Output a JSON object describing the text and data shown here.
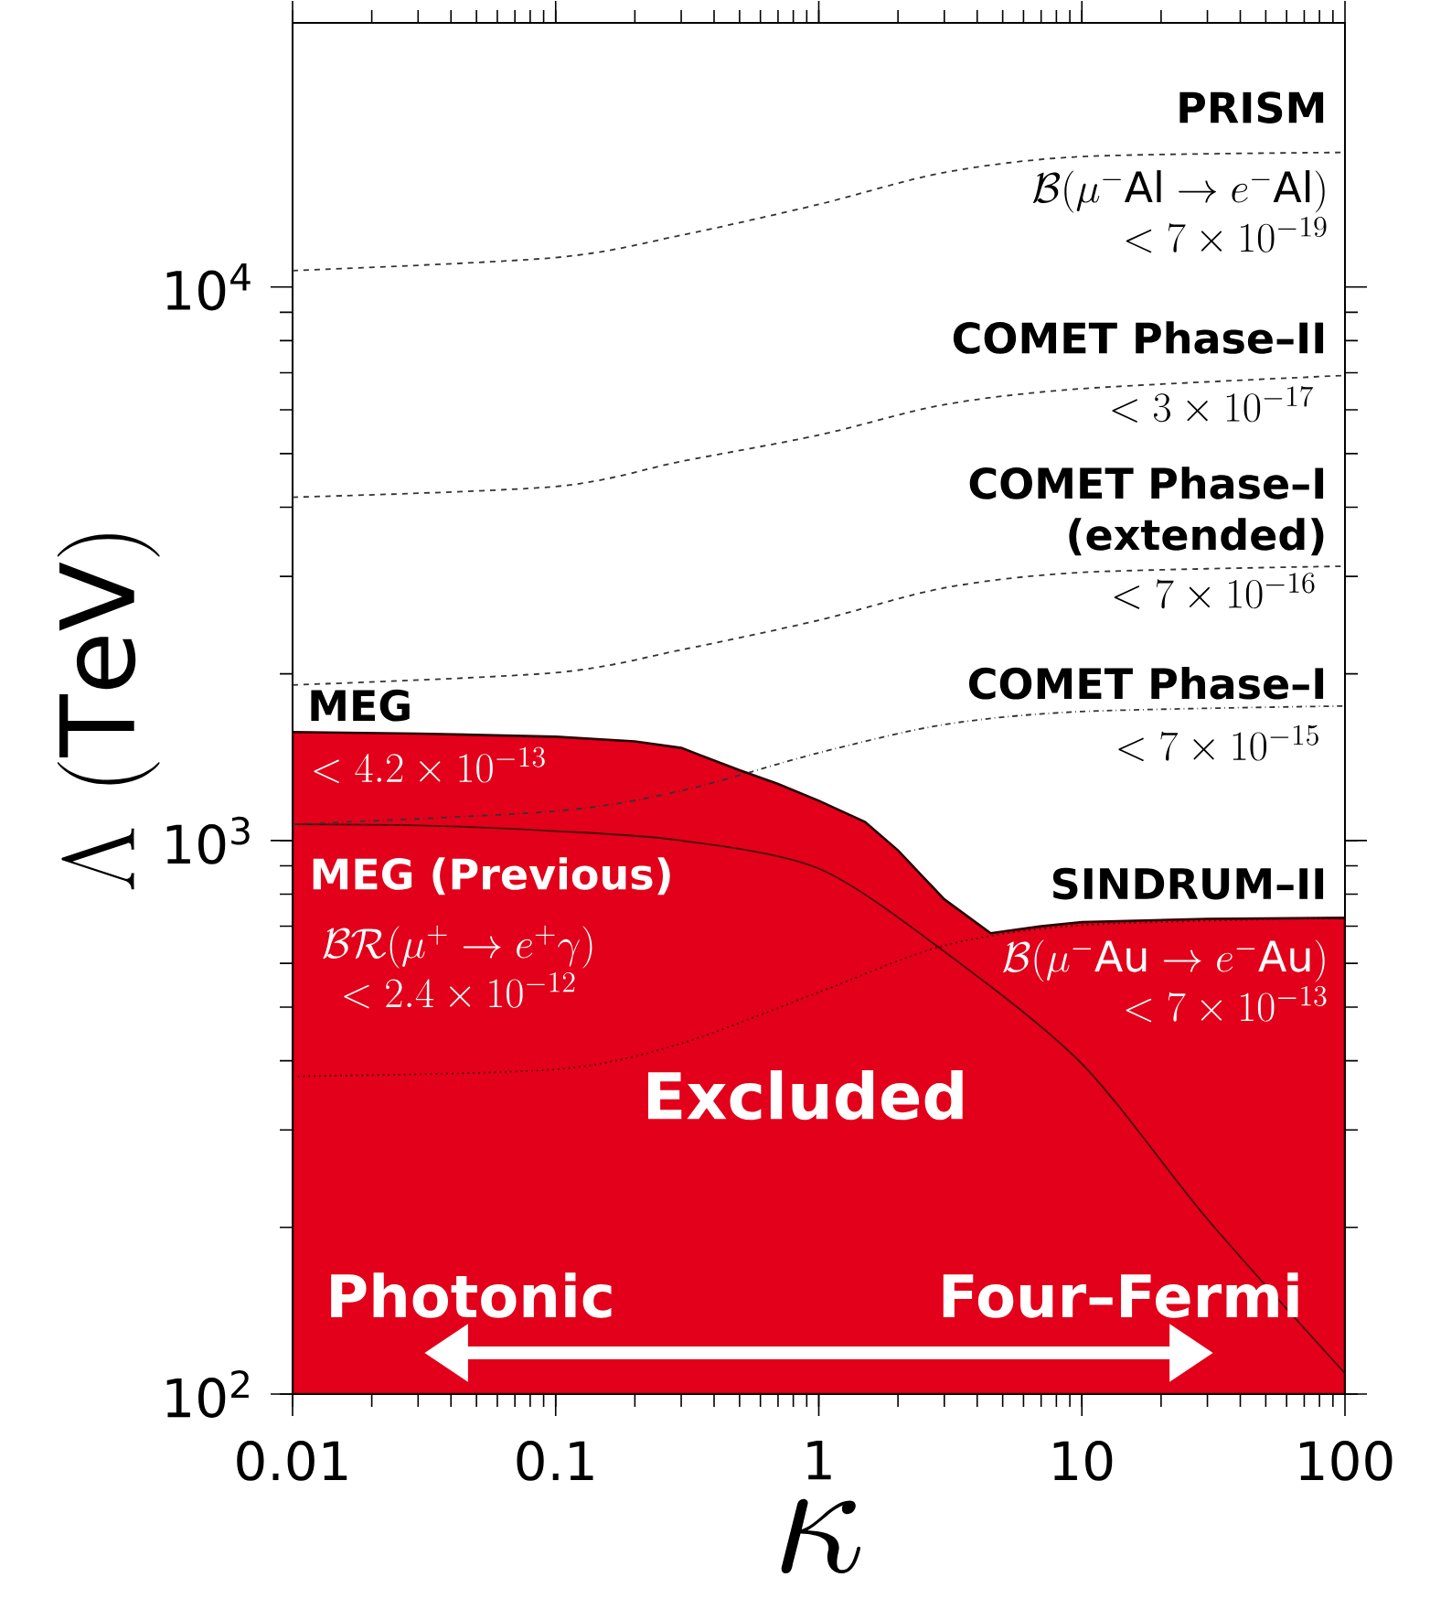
{
  "chart_data": {
    "type": "line",
    "xlabel": "\\kappa",
    "ylabel": "\\Lambda\\ (\\mathrm{TeV})",
    "log": "xy",
    "xlim": [
      0.01,
      100
    ],
    "ylim": [
      100,
      30000
    ],
    "xticks": [
      0.01,
      0.1,
      1,
      10,
      100
    ],
    "yticks": [
      {
        "value": 100,
        "label": "10$^{2}$"
      },
      {
        "value": 1000,
        "label": "10$^{3}$"
      },
      {
        "value": 10000,
        "label": "10$^{4}$"
      }
    ],
    "marker": "none",
    "series": [
      {
        "type": "area",
        "color": "#e2001a",
        "x": [
          0.01,
          0.03,
          0.1,
          0.2,
          0.3,
          0.5,
          0.7,
          1,
          1.5,
          2,
          3,
          4.5,
          7,
          10,
          30,
          100
        ],
        "values": [
          1570,
          1560,
          1540,
          1510,
          1470,
          1340,
          1265,
          1180,
          1080,
          960,
          783,
          680,
          700,
          712,
          722,
          725
        ]
      },
      {
        "color": "#4a0a0a",
        "line_style": "solid",
        "x": [
          0.01,
          0.03,
          0.1,
          0.3,
          1,
          3,
          10,
          30,
          100
        ],
        "values": [
          1070,
          1065,
          1040,
          1000,
          890,
          630,
          395,
          207,
          109
        ]
      },
      {
        "color": "#4a0a0a",
        "line_style": "dotted",
        "x": [
          0.01,
          0.1,
          0.3,
          1,
          3,
          10,
          100
        ],
        "values": [
          375,
          386,
          430,
          532,
          646,
          703,
          725
        ]
      },
      {
        "color": "#333333",
        "line_style": "dashdotted",
        "x": [
          0.01,
          0.1,
          0.3,
          1,
          3,
          10,
          100
        ],
        "values": [
          1070,
          1130,
          1230,
          1440,
          1620,
          1710,
          1750
        ]
      },
      {
        "color": "#333333",
        "line_style": "dashed",
        "x": [
          0.01,
          0.1,
          0.3,
          1,
          3,
          10,
          100
        ],
        "values": [
          1910,
          2010,
          2210,
          2500,
          2860,
          3050,
          3130
        ]
      },
      {
        "color": "#333333",
        "line_style": "dashed",
        "x": [
          0.01,
          0.1,
          0.3,
          1,
          3,
          10,
          100
        ],
        "values": [
          4170,
          4360,
          4840,
          5400,
          6130,
          6550,
          6920
        ]
      },
      {
        "color": "#333333",
        "line_style": "dashed",
        "x": [
          0.01,
          0.1,
          0.3,
          1,
          3,
          10,
          100
        ],
        "values": [
          10700,
          11300,
          12400,
          14100,
          16100,
          17200,
          17500
        ]
      }
    ],
    "annotations": [
      "PRISM",
      "\\begin{array}{r}\\mathcal{B}(\\mu^-\\mathrm{Al}\\rightarrow e^-\\mathrm{Al})\\\\<7\\times10^{-19}\\end{array}",
      "COMET Phase–II",
      "<3\\times10^{-17}",
      "COMET Phase–I (extended)",
      "<7\\times10^{-16}",
      "COMET Phase–I",
      "<7\\times10^{-15}",
      "MEG",
      "<4.2\\times10^{-13}",
      "MEG (Previous)",
      "\\begin{array}{c}\\mathcal{BR}(\\mu^+\\rightarrow e^+\\gamma)\\\\<2.4\\times10^{-12}\\end{array}",
      "SINDRUM–II",
      "\\begin{array}{r}\\mathcal{B}(\\mu^-\\mathrm{Au}\\rightarrow e^-\\mathrm{Au})\\\\<7\\times10^{-13}\\end{array}",
      "Excluded",
      "Photonic",
      "Four–Fermi"
    ]
  }
}
